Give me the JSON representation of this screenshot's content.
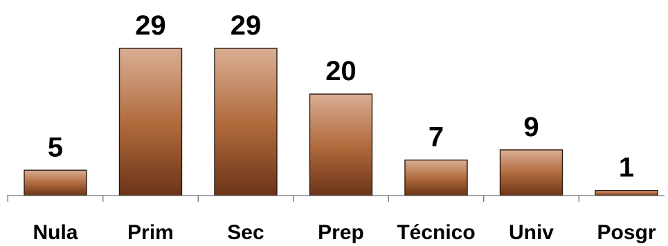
{
  "chart_data": {
    "type": "bar",
    "categories": [
      "Nula",
      "Prim",
      "Sec",
      "Prep",
      "Técnico",
      "Univ",
      "Posgr"
    ],
    "values": [
      5,
      29,
      29,
      20,
      7,
      9,
      1
    ],
    "ylim": [
      0,
      29
    ],
    "grid": false,
    "legend": "none",
    "colors": {
      "bar_top": "#d9ae93",
      "bar_mid": "#b06a3c",
      "bar_bottom": "#6b3418",
      "bar_stroke": "#2a1a10",
      "axis": "#6f6f6f",
      "text": "#000000",
      "background": "#ffffff"
    }
  }
}
